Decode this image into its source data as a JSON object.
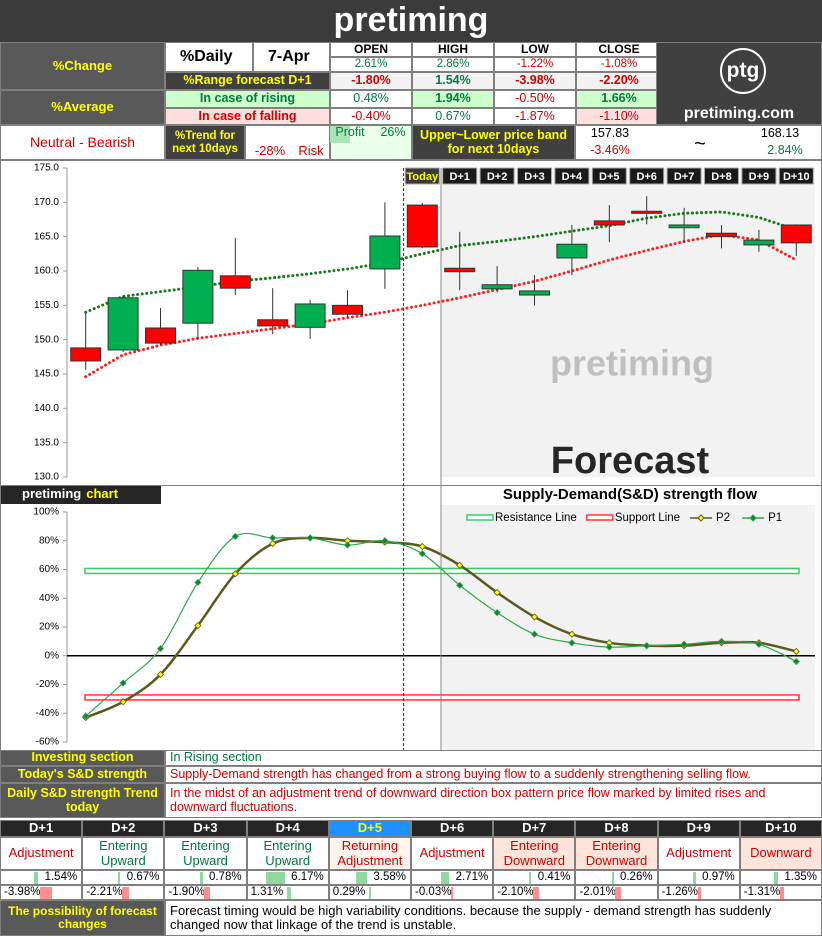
{
  "header": {
    "title": "pretiming"
  },
  "summary": {
    "change_label": "%Change",
    "daily_label": "%Daily",
    "date": "7-Apr",
    "columns": [
      "OPEN",
      "HIGH",
      "LOW",
      "CLOSE"
    ],
    "daily": [
      "2.61%",
      "2.86%",
      "-1.22%",
      "-1.08%"
    ],
    "range_label": "%Range forecast D+1",
    "range": [
      "-1.80%",
      "1.54%",
      "-3.98%",
      "-2.20%"
    ],
    "average_label": "%Average",
    "rising_label": "In case of rising",
    "rising": [
      "0.48%",
      "1.94%",
      "-0.50%",
      "1.66%"
    ],
    "falling_label": "In case of falling",
    "falling": [
      "-0.40%",
      "0.67%",
      "-1.87%",
      "-1.10%"
    ]
  },
  "logo": {
    "mark": "ptg",
    "site": "pretiming.com"
  },
  "outlook": {
    "signal": "Neutral - Bearish",
    "trend_label": "%Trend for next 10days",
    "risk_value": "-28%",
    "risk_label": "Risk",
    "profit_label": "Profit",
    "profit_value": "26%",
    "band_label": "Upper~Lower price band for next 10days",
    "lower": "157.83",
    "lower_pct": "-3.46%",
    "separator": "~",
    "upper": "168.13",
    "upper_pct": "2.84%"
  },
  "chart_data": [
    {
      "type": "candlestick",
      "watermark": "pretiming",
      "annotation": "Forecast",
      "categories": [
        null,
        null,
        null,
        null,
        null,
        null,
        null,
        null,
        null,
        "Today",
        "D+1",
        "D+2",
        "D+3",
        "D+4",
        "D+5",
        "D+6",
        "D+7",
        "D+8",
        "D+9",
        "D+10"
      ],
      "open": [
        148.8,
        148.5,
        151.7,
        152.4,
        159.3,
        152.9,
        151.8,
        155.0,
        160.3,
        169.6,
        160.4,
        157.4,
        156.5,
        161.9,
        167.3,
        168.7,
        166.3,
        165.5,
        163.8,
        166.7
      ],
      "high": [
        153.9,
        156.4,
        154.6,
        160.6,
        164.8,
        157.5,
        155.8,
        157.2,
        170.0,
        169.9,
        165.7,
        160.7,
        159.4,
        166.7,
        169.6,
        170.9,
        169.2,
        166.7,
        166.0,
        166.8
      ],
      "low": [
        145.6,
        148.2,
        149.2,
        150.0,
        156.5,
        150.8,
        150.1,
        153.2,
        157.4,
        163.3,
        157.2,
        156.9,
        155.0,
        159.4,
        164.2,
        166.8,
        164.1,
        163.3,
        162.8,
        162.2
      ],
      "close": [
        146.9,
        156.1,
        149.5,
        160.1,
        157.5,
        152.0,
        155.2,
        153.7,
        165.1,
        163.5,
        159.9,
        158.0,
        157.1,
        163.9,
        166.7,
        168.4,
        166.7,
        165.0,
        164.5,
        164.1
      ],
      "up_color": "#00b050",
      "down_color": "#ff0000",
      "bands": [
        {
          "color": "#1a7a1a",
          "values": [
            154.0,
            156.3,
            157.0,
            157.7,
            158.5,
            159.0,
            159.6,
            160.3,
            161.2,
            162.5,
            163.7,
            164.3,
            165.0,
            165.8,
            166.6,
            167.7,
            168.4,
            168.6,
            167.8,
            166.0
          ]
        },
        {
          "color": "#ff2020",
          "values": [
            144.6,
            147.8,
            149.2,
            150.2,
            150.9,
            151.6,
            152.3,
            153.2,
            154.0,
            155.0,
            156.1,
            157.3,
            158.5,
            160.0,
            161.6,
            163.0,
            164.3,
            165.3,
            164.5,
            161.6
          ]
        }
      ],
      "ylim": [
        130,
        175
      ],
      "yticks": [
        {
          "value": 130,
          "label": "130.0"
        },
        {
          "value": 135,
          "label": "135.0"
        },
        {
          "value": 140,
          "label": "140.0"
        },
        {
          "value": 145,
          "label": "145.0"
        },
        {
          "value": 150,
          "label": "150.0"
        },
        {
          "value": 155,
          "label": "155.0"
        },
        {
          "value": 160,
          "label": "160.0"
        },
        {
          "value": 165,
          "label": "165.0"
        },
        {
          "value": 170,
          "label": "170.0"
        },
        {
          "value": 175,
          "label": "175.0"
        }
      ]
    },
    {
      "type": "line",
      "badge": "pretiming",
      "badge_word": "chart",
      "title": "Supply-Demand(S&D) strength flow",
      "reference_lines": [
        {
          "name": "Resistance Line",
          "value": 59,
          "color": "#33cc66"
        },
        {
          "name": "Support Line",
          "value": -29,
          "color": "#ff3333"
        }
      ],
      "series": [
        {
          "name": "P2",
          "color": "#5a5a1e",
          "marker_color": "#ffff00",
          "values": [
            -43,
            -32,
            -13,
            21,
            57,
            78,
            82,
            80,
            79,
            76,
            63,
            44,
            27,
            15,
            9,
            7,
            7,
            9,
            9,
            3
          ]
        },
        {
          "name": "P1",
          "color": "#2aa84a",
          "marker_color": "#1e7a3a",
          "values": [
            -42,
            -19,
            5,
            51,
            83,
            82,
            82,
            77,
            80,
            71,
            49,
            30,
            15,
            9,
            6,
            7,
            8,
            10,
            8,
            -4
          ]
        }
      ],
      "ylim": [
        -60,
        100
      ],
      "yticks": [
        {
          "value": -60,
          "label": "-60%"
        },
        {
          "value": -40,
          "label": "-40%"
        },
        {
          "value": -20,
          "label": "-20%"
        },
        {
          "value": 0,
          "label": "0%"
        },
        {
          "value": 20,
          "label": "20%"
        },
        {
          "value": 40,
          "label": "40%"
        },
        {
          "value": 60,
          "label": "60%"
        },
        {
          "value": 80,
          "label": "80%"
        },
        {
          "value": 100,
          "label": "100%"
        }
      ]
    }
  ],
  "analysis": {
    "rows": [
      [
        "Investing section",
        "In Rising section"
      ],
      [
        "Today's S&D strength",
        "Supply-Demand strength has changed from a strong buying flow to a suddenly strengthening selling flow."
      ],
      [
        "Daily S&D strength Trend today",
        "In the midst of an adjustment trend of downward direction box pattern price flow marked by limited rises and downward fluctuations."
      ]
    ]
  },
  "forecast_days": {
    "days": [
      "D+1",
      "D+2",
      "D+3",
      "D+4",
      "D+5",
      "D+6",
      "D+7",
      "D+8",
      "D+9",
      "D+10"
    ],
    "labels": [
      "Adjustment",
      "Entering Upward",
      "Entering Upward",
      "Entering Upward",
      "Returning Adjustment",
      "Adjustment",
      "Entering Downward",
      "Entering Downward",
      "Adjustment",
      "Downward"
    ],
    "highs": [
      "1.54%",
      "0.67%",
      "0.78%",
      "6.17%",
      "3.58%",
      "2.71%",
      "0.41%",
      "0.26%",
      "0.97%",
      "1.35%"
    ],
    "lows": [
      "-3.98%",
      "-2.21%",
      "-1.90%",
      "1.31%",
      "0.29%",
      "-0.03%",
      "-2.10%",
      "-2.01%",
      "-1.26%",
      "-1.31%"
    ]
  },
  "footer": {
    "label": "The possibility of forecast changes",
    "text": "Forecast timing would be high variability conditions. because the supply - demand strength has suddenly changed now that linkage of the trend is unstable."
  }
}
